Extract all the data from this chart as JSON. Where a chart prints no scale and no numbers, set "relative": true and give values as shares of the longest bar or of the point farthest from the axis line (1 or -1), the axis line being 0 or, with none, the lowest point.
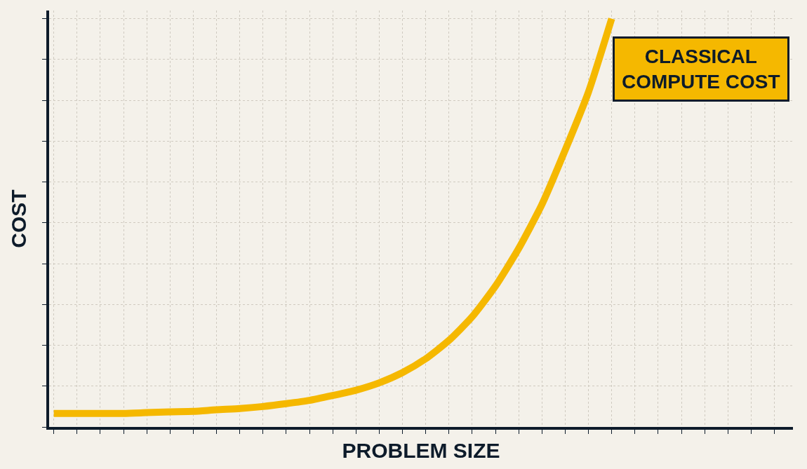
{
  "chart_data": {
    "type": "line",
    "relative": true,
    "xlabel": "PROBLEM SIZE",
    "ylabel": "COST",
    "annotations": [
      "CLASSICAL\nCOMPUTE COST"
    ],
    "categories": [
      null,
      null,
      null,
      null,
      null,
      null,
      null,
      null,
      null,
      null,
      null,
      null,
      null,
      null,
      null,
      null,
      null,
      null,
      null,
      null,
      null,
      null,
      null,
      null,
      null,
      null,
      null,
      null,
      null,
      null,
      null,
      null
    ],
    "series": [
      {
        "color": "#f5b800",
        "values": [
          0.033,
          0.033,
          0.033,
          0.033,
          0.035,
          0.037,
          0.038,
          0.042,
          0.045,
          0.05,
          0.057,
          0.065,
          0.077,
          0.09,
          0.108,
          0.133,
          0.167,
          0.212,
          0.27,
          0.345,
          0.437,
          0.545,
          0.678,
          0.82,
          1,
          null,
          null,
          null,
          null,
          null,
          null,
          null
        ]
      }
    ],
    "grid": true,
    "tick_labels": false,
    "marker": "none",
    "line_style": "solid"
  }
}
